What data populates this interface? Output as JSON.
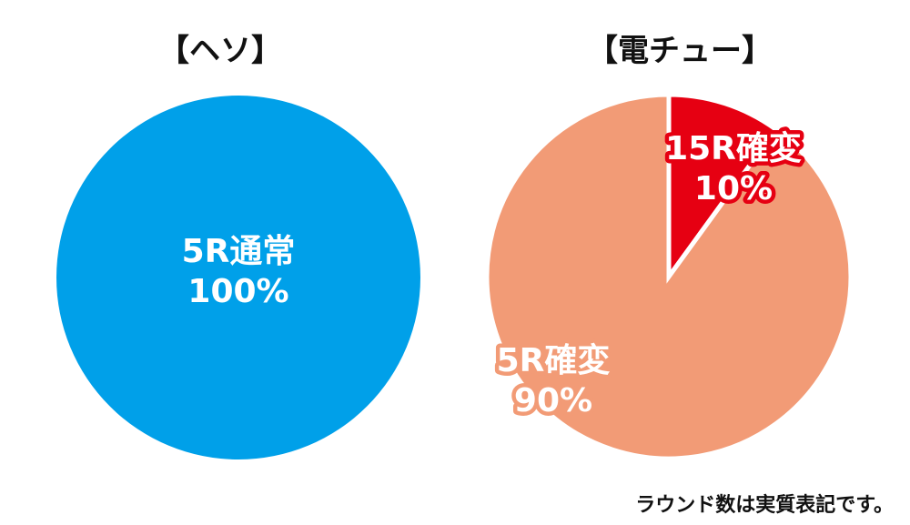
{
  "chart_data": [
    {
      "type": "pie",
      "title": "【ヘソ】",
      "slices": [
        {
          "label": "5R通常",
          "value": 100,
          "value_label": "100%",
          "color": "#00a0e9"
        }
      ]
    },
    {
      "type": "pie",
      "title": "【電チュー】",
      "slices": [
        {
          "label": "15R確変",
          "value": 10,
          "value_label": "10%",
          "color": "#e60012"
        },
        {
          "label": "5R確変",
          "value": 90,
          "value_label": "90%",
          "color": "#f29b76"
        }
      ]
    }
  ],
  "footnote": "ラウンド数は実質表記です。"
}
